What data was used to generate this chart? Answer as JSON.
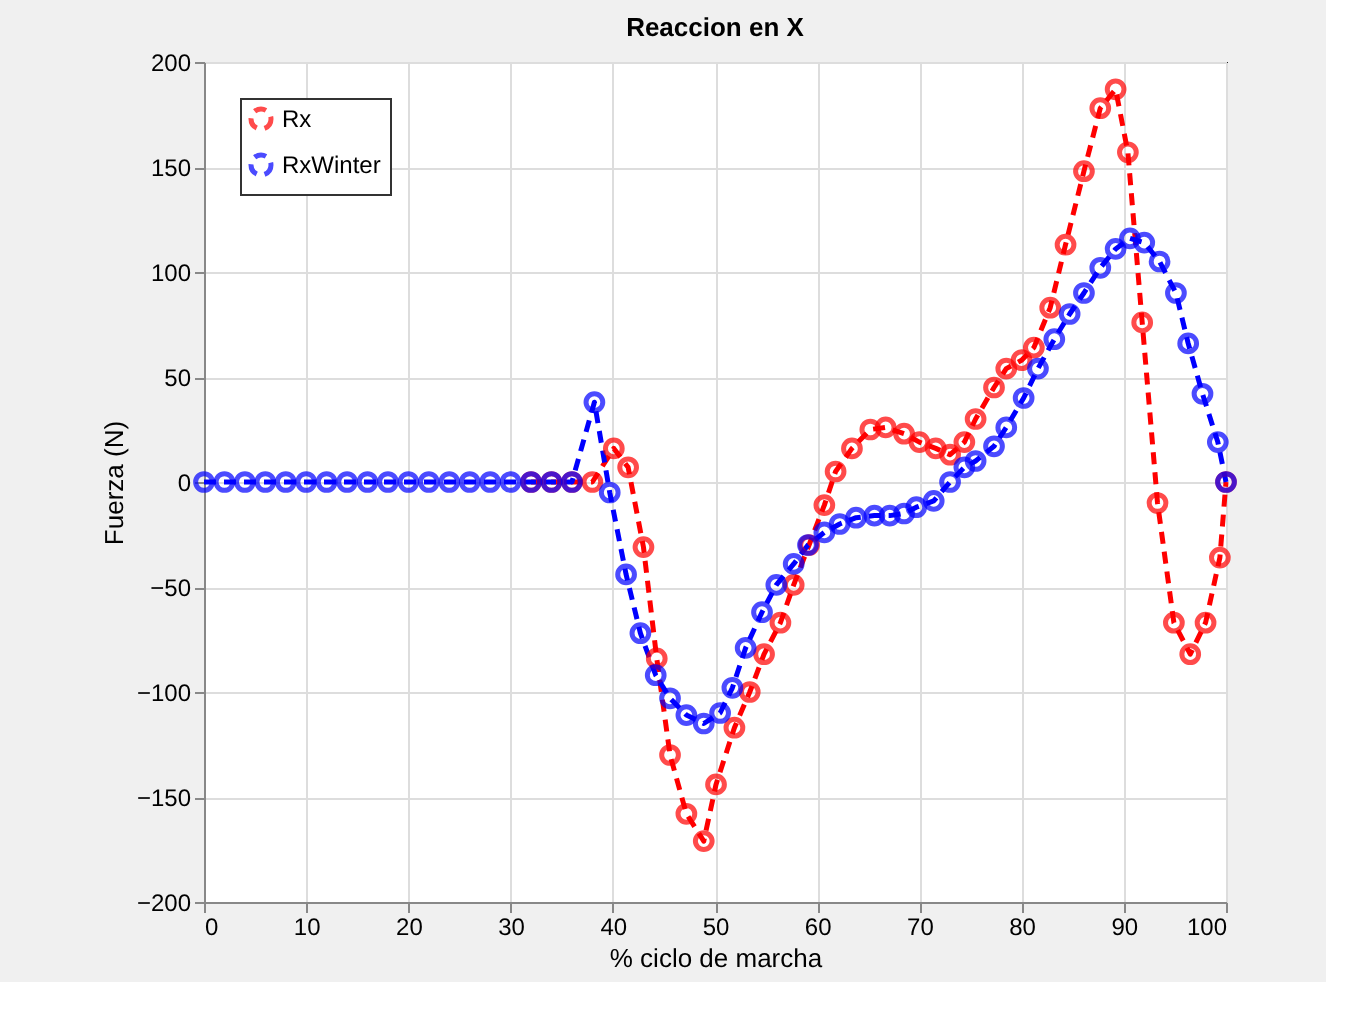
{
  "chart_data": {
    "type": "line",
    "title": "Reaccion en X",
    "xlabel": "% ciclo de marcha",
    "ylabel": "Fuerza (N)",
    "xlim": [
      0,
      100
    ],
    "ylim": [
      -200,
      200
    ],
    "xticks": [
      0,
      10,
      20,
      30,
      40,
      50,
      60,
      70,
      80,
      90,
      100
    ],
    "yticks": [
      -200,
      -150,
      -100,
      -50,
      0,
      50,
      100,
      150,
      200
    ],
    "grid": true,
    "legend": "top left",
    "marker": "circle",
    "line_style": "dashed",
    "series": [
      {
        "name": "Rx",
        "color": "#ff0000",
        "x": [
          32,
          34,
          36,
          38,
          40.1,
          41.5,
          43,
          44.3,
          45.6,
          47.2,
          48.9,
          50.1,
          51.9,
          53.4,
          54.8,
          56.4,
          57.7,
          59.2,
          60.7,
          61.8,
          63.4,
          65.2,
          66.7,
          68.5,
          70,
          71.6,
          73,
          74.4,
          75.5,
          77.3,
          78.5,
          80,
          81.2,
          82.8,
          84.3,
          86.1,
          87.7,
          89.2,
          90.4,
          91.8,
          93.3,
          94.9,
          96.5,
          98,
          99.4,
          100
        ],
        "values": [
          0,
          0,
          0,
          0,
          16,
          7,
          -31,
          -84,
          -130,
          -158,
          -171,
          -144,
          -117,
          -100,
          -82,
          -67,
          -49,
          -30,
          -11,
          5,
          16,
          25,
          26,
          23,
          19,
          16,
          13,
          19,
          30,
          45,
          54,
          58,
          64,
          83,
          113,
          148,
          178,
          187,
          157,
          76,
          -10,
          -67,
          -82,
          -67,
          -36,
          0
        ]
      },
      {
        "name": "RxWinter",
        "color": "#0000ff",
        "x": [
          0,
          2,
          4,
          6,
          8,
          10,
          12,
          14,
          16,
          18,
          20,
          22,
          24,
          26,
          28,
          30,
          32,
          34,
          36,
          38.2,
          39.7,
          41.3,
          42.7,
          44.2,
          45.6,
          47.2,
          48.9,
          50.5,
          51.7,
          53,
          54.6,
          56,
          57.7,
          59.1,
          60.7,
          62.2,
          63.8,
          65.6,
          67.1,
          68.5,
          69.7,
          71.4,
          73,
          74.4,
          75.5,
          77.3,
          78.5,
          80.2,
          81.6,
          83.2,
          84.7,
          86.1,
          87.7,
          89.2,
          90.6,
          92,
          93.5,
          95.1,
          96.3,
          97.7,
          99.2,
          100
        ],
        "values": [
          0,
          0,
          0,
          0,
          0,
          0,
          0,
          0,
          0,
          0,
          0,
          0,
          0,
          0,
          0,
          0,
          0,
          0,
          0,
          38,
          -5,
          -44,
          -72,
          -92,
          -103,
          -111,
          -115,
          -110,
          -98,
          -79,
          -62,
          -49,
          -39,
          -30,
          -24,
          -20,
          -17,
          -16,
          -16,
          -15,
          -12,
          -9,
          0,
          7,
          10,
          17,
          26,
          40,
          54,
          68,
          80,
          90,
          102,
          111,
          116,
          114,
          105,
          90,
          66,
          42,
          19,
          0
        ]
      }
    ]
  }
}
